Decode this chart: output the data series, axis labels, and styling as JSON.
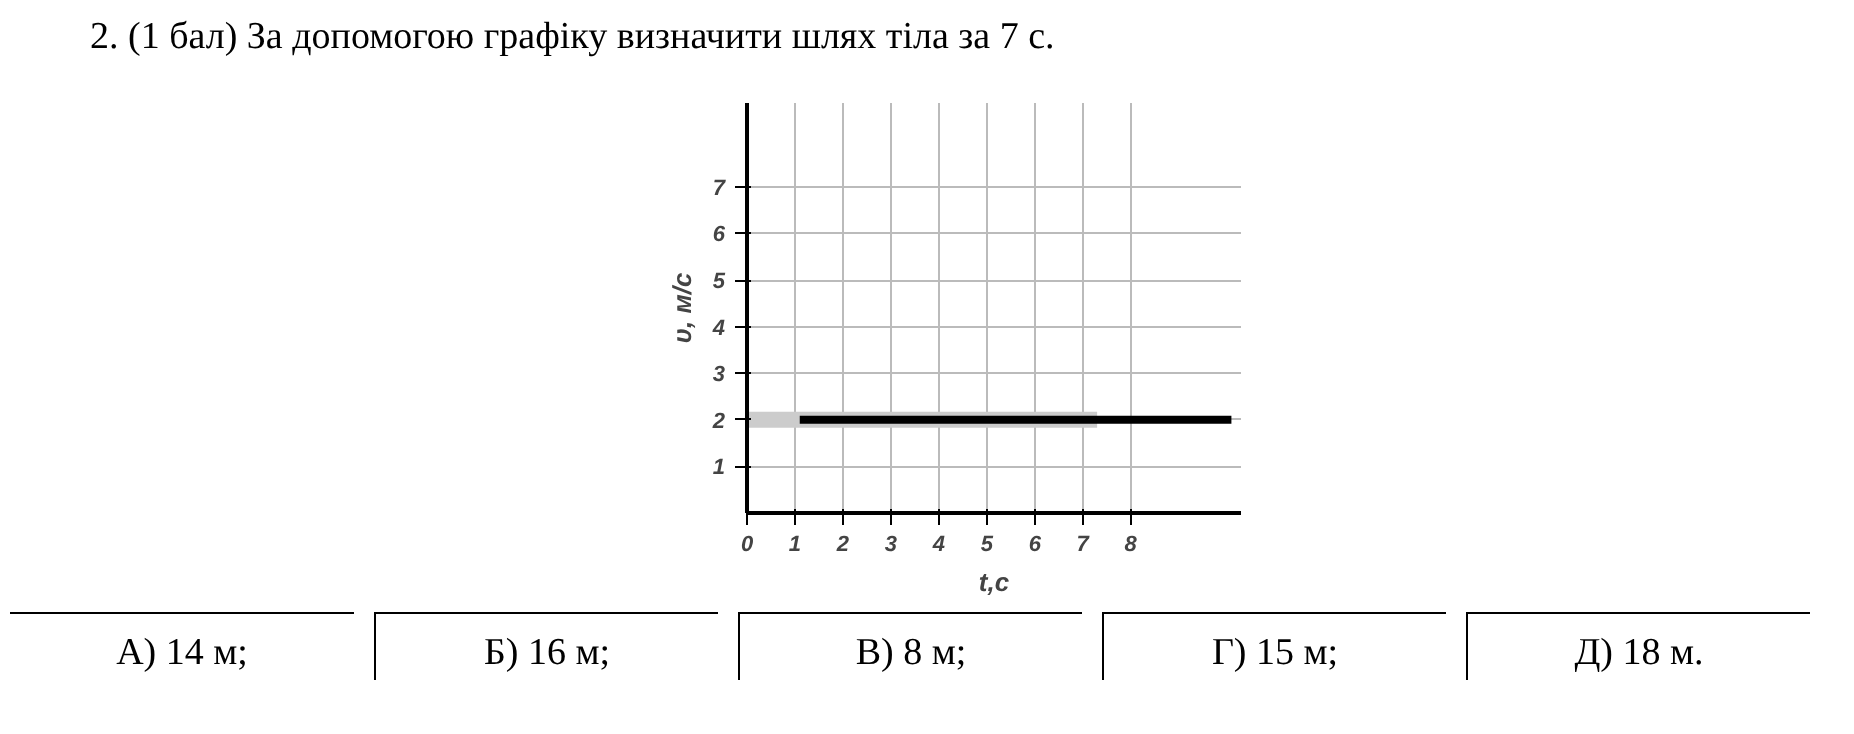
{
  "chart_data": {
    "type": "line",
    "title": "2. (1 бал) За допомогою графіку визначити шлях тіла за 7 с.",
    "xlabel": "t,c",
    "ylabel": "υ, м/с",
    "series": [
      {
        "color": "#cccccc",
        "x": [
          0,
          7.3
        ],
        "values": [
          2,
          2
        ]
      },
      {
        "color": "#000000",
        "x": [
          1.1,
          10.1
        ],
        "values": [
          2,
          2
        ]
      }
    ],
    "xlim": [
      0,
      10.3
    ],
    "ylim": [
      0,
      8.8
    ],
    "xticks": [
      0,
      1,
      2,
      3,
      4,
      5,
      6,
      7,
      8
    ],
    "yticks": [
      1,
      2,
      3,
      4,
      5,
      6,
      7
    ],
    "grid": true,
    "marker": "none",
    "line_style": "solid",
    "annotations": [
      "А) 14 м;",
      "Б) 16 м;",
      "В) 8 м;",
      "Г) 15 м;",
      "Д) 18 м."
    ]
  }
}
